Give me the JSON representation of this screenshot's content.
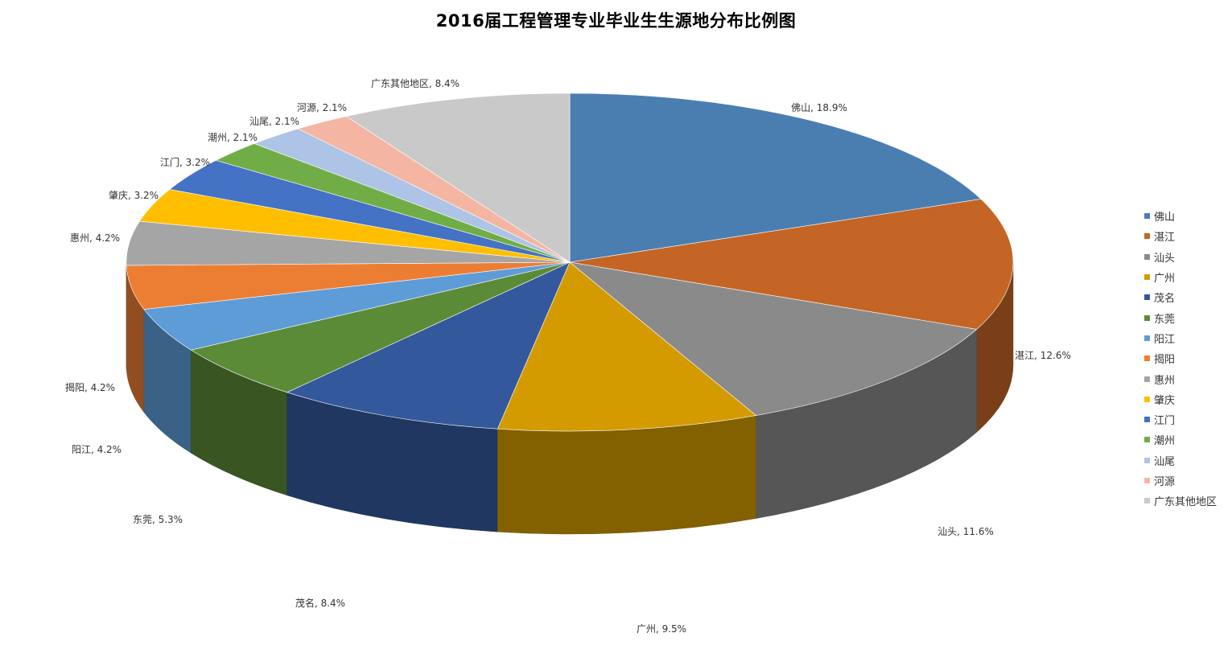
{
  "chart_data": {
    "type": "pie",
    "title": "2016届工程管理专业毕业生生源地分布比例图",
    "label_sep": ", ",
    "legend_position": "right",
    "slices": [
      {
        "name": "佛山",
        "value": 18.9,
        "pct": "18.9%",
        "color": "#4a7eb1"
      },
      {
        "name": "湛江",
        "value": 12.6,
        "pct": "12.6%",
        "color": "#c46526"
      },
      {
        "name": "汕头",
        "value": 11.6,
        "pct": "11.6%",
        "color": "#8a8a8a"
      },
      {
        "name": "广州",
        "value": 9.5,
        "pct": "9.5%",
        "color": "#d39b00"
      },
      {
        "name": "茂名",
        "value": 8.4,
        "pct": "8.4%",
        "color": "#34589c"
      },
      {
        "name": "东莞",
        "value": 5.3,
        "pct": "5.3%",
        "color": "#5c8b37"
      },
      {
        "name": "阳江",
        "value": 4.2,
        "pct": "4.2%",
        "color": "#5e9cd8"
      },
      {
        "name": "揭阳",
        "value": 4.2,
        "pct": "4.2%",
        "color": "#ec7e34"
      },
      {
        "name": "惠州",
        "value": 4.2,
        "pct": "4.2%",
        "color": "#a5a5a5"
      },
      {
        "name": "肇庆",
        "value": 3.2,
        "pct": "3.2%",
        "color": "#ffbf00"
      },
      {
        "name": "江门",
        "value": 3.2,
        "pct": "3.2%",
        "color": "#4472c4"
      },
      {
        "name": "潮州",
        "value": 2.1,
        "pct": "2.1%",
        "color": "#71ad47"
      },
      {
        "name": "汕尾",
        "value": 2.1,
        "pct": "2.1%",
        "color": "#aec4e6"
      },
      {
        "name": "河源",
        "value": 2.1,
        "pct": "2.1%",
        "color": "#f4b6a3"
      },
      {
        "name": "广东其他地区",
        "value": 8.4,
        "pct": "8.4%",
        "color": "#c9c9c9"
      }
    ]
  }
}
